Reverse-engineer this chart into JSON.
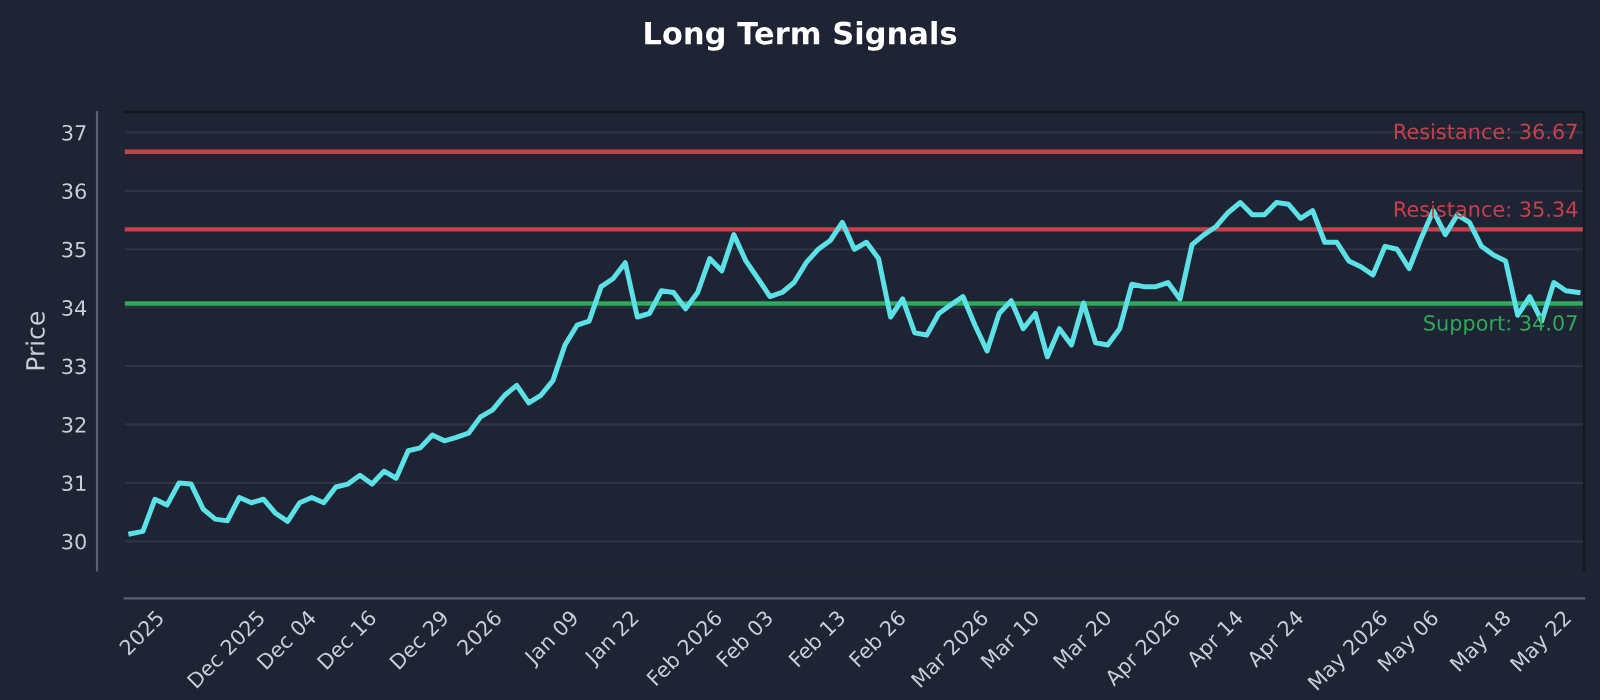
{
  "chart_data": {
    "type": "line",
    "title": "Long Term Signals",
    "ylabel": "Price",
    "categories": [
      null,
      "2025",
      null,
      null,
      null,
      null,
      null,
      null,
      "Dec 2025",
      null,
      null,
      null,
      null,
      "Dec 04",
      null,
      null,
      null,
      null,
      "Dec 16",
      null,
      null,
      null,
      null,
      null,
      "Dec 29",
      null,
      null,
      null,
      null,
      "2026",
      null,
      null,
      null,
      null,
      null,
      "Jan 09",
      null,
      null,
      null,
      null,
      "Jan 22",
      null,
      null,
      null,
      null,
      null,
      "Feb 2026",
      null,
      null,
      null,
      null,
      "Feb 03",
      null,
      null,
      null,
      null,
      null,
      "Feb 13",
      null,
      null,
      null,
      null,
      "Feb 26",
      null,
      null,
      null,
      null,
      null,
      "Mar 2026",
      null,
      null,
      null,
      null,
      "Mar 10",
      null,
      null,
      null,
      null,
      null,
      "Mar 20",
      null,
      null,
      null,
      null,
      "Apr 2026",
      null,
      null,
      null,
      null,
      null,
      "Apr 14",
      null,
      null,
      null,
      null,
      "Apr 24",
      null,
      null,
      null,
      null,
      null,
      "May 2026",
      null,
      null,
      null,
      null,
      "May 06",
      null,
      null,
      null,
      null,
      null,
      "May 18",
      null,
      null,
      null,
      null,
      "May 22",
      null,
      null,
      null
    ],
    "series": [
      {
        "color": "#5ce1e6",
        "values": [
          30.13,
          30.17,
          30.72,
          30.62,
          31.0,
          30.98,
          30.55,
          30.38,
          30.35,
          30.75,
          30.66,
          30.72,
          30.48,
          30.34,
          30.66,
          30.75,
          30.66,
          30.93,
          30.98,
          31.13,
          30.98,
          31.2,
          31.08,
          31.55,
          31.6,
          31.82,
          31.72,
          31.78,
          31.85,
          32.13,
          32.25,
          32.5,
          32.67,
          32.37,
          32.5,
          32.75,
          33.36,
          33.7,
          33.77,
          34.36,
          34.5,
          34.77,
          33.84,
          33.9,
          34.29,
          34.26,
          33.98,
          34.26,
          34.84,
          34.63,
          35.25,
          34.8,
          34.5,
          34.19,
          34.26,
          34.43,
          34.77,
          35.0,
          35.15,
          35.46,
          35.0,
          35.12,
          34.84,
          33.84,
          34.15,
          33.57,
          33.53,
          33.9,
          34.05,
          34.19,
          33.7,
          33.26,
          33.9,
          34.12,
          33.64,
          33.9,
          33.16,
          33.64,
          33.36,
          34.08,
          33.4,
          33.36,
          33.64,
          34.4,
          34.36,
          34.36,
          34.43,
          34.15,
          35.08,
          35.25,
          35.39,
          35.63,
          35.8,
          35.59,
          35.59,
          35.8,
          35.77,
          35.53,
          35.66,
          35.12,
          35.12,
          34.8,
          34.7,
          34.56,
          35.05,
          35.0,
          34.67,
          35.19,
          35.66,
          35.25,
          35.59,
          35.46,
          35.05,
          34.9,
          34.8,
          33.87,
          34.19,
          33.77,
          34.43,
          34.29,
          34.26
        ]
      }
    ],
    "ylim": [
      29.5,
      37.35
    ],
    "yticks": [
      30,
      31,
      32,
      33,
      34,
      35,
      36,
      37
    ],
    "grid": "y",
    "marker": "none",
    "line_style": "solid",
    "ref_lines": [
      {
        "axis": "y",
        "value": 36.67,
        "label": "Resistance: 36.67",
        "color": "#c8404a"
      },
      {
        "axis": "y",
        "value": 35.34,
        "label": "Resistance: 35.34",
        "color": "#c8404a"
      },
      {
        "axis": "y",
        "value": 34.07,
        "label": "Support: 34.07",
        "color": "#2eaa5a"
      }
    ]
  }
}
